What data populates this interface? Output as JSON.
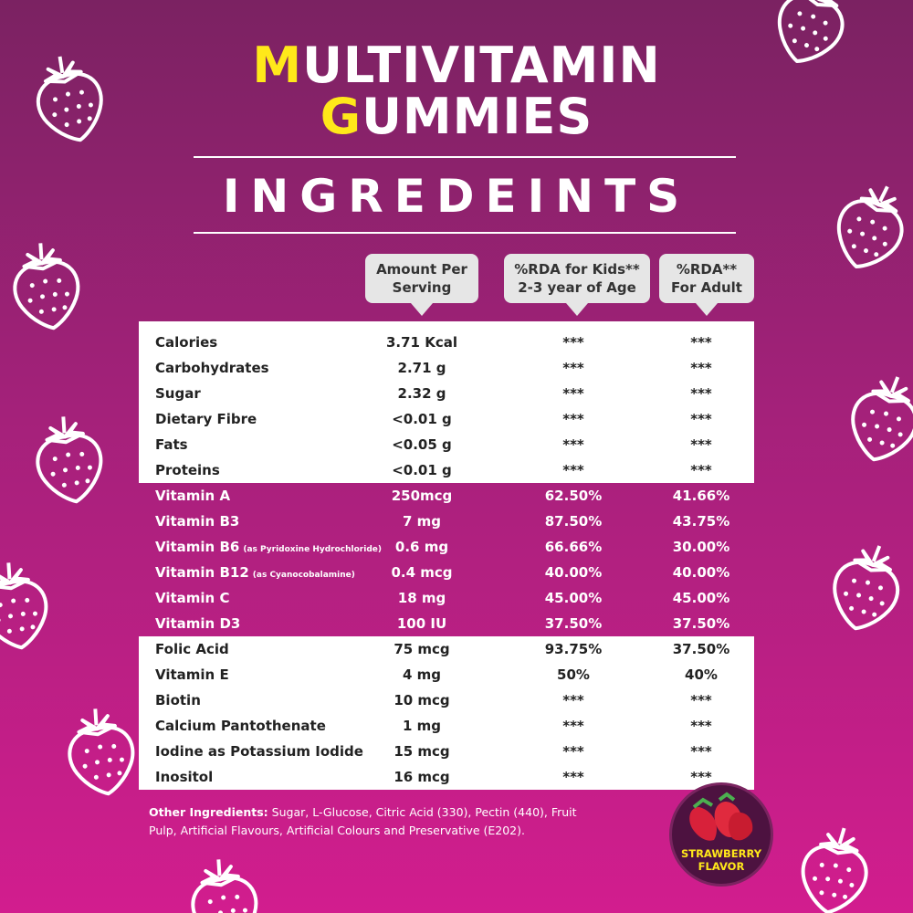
{
  "header": {
    "title_lines": [
      "MULTIVITAMIN",
      "GUMMIES"
    ],
    "subtitle": "INGREDEINTS"
  },
  "columns": [
    [
      "Amount Per",
      "Serving"
    ],
    [
      "%RDA for Kids**",
      "2-3 year of Age"
    ],
    [
      "%RDA**",
      "For Adult"
    ]
  ],
  "table": {
    "groups": [
      {
        "rows": [
          {
            "name": "Calories",
            "amount": "3.71 Kcal",
            "kids": "***",
            "adult": "***"
          },
          {
            "name": "Carbohydrates",
            "amount": "2.71 g",
            "kids": "***",
            "adult": "***"
          },
          {
            "name": "Sugar",
            "amount": "2.32 g",
            "kids": "***",
            "adult": "***"
          },
          {
            "name": "Dietary Fibre",
            "amount": "<0.01 g",
            "kids": "***",
            "adult": "***"
          },
          {
            "name": "Fats",
            "amount": "<0.05 g",
            "kids": "***",
            "adult": "***"
          },
          {
            "name": "Proteins",
            "amount": "<0.01 g",
            "kids": "***",
            "adult": "***"
          }
        ]
      },
      {
        "rows": [
          {
            "name": "Vitamin A",
            "amount": "250mcg",
            "kids": "62.50%",
            "adult": "41.66%"
          },
          {
            "name": "Vitamin B3",
            "amount": "7 mg",
            "kids": "87.50%",
            "adult": "43.75%"
          },
          {
            "name": "Vitamin B6",
            "note": "(as Pyridoxine Hydrochloride)",
            "amount": "0.6 mg",
            "kids": "66.66%",
            "adult": "30.00%"
          },
          {
            "name": "Vitamin B12",
            "note": "(as Cyanocobalamine)",
            "amount": "0.4 mcg",
            "kids": "40.00%",
            "adult": "40.00%"
          },
          {
            "name": "Vitamin C",
            "amount": "18 mg",
            "kids": "45.00%",
            "adult": "45.00%"
          },
          {
            "name": "Vitamin D3",
            "amount": "100 IU",
            "kids": "37.50%",
            "adult": "37.50%"
          }
        ]
      },
      {
        "rows": [
          {
            "name": "Folic Acid",
            "amount": "75 mcg",
            "kids": "93.75%",
            "adult": "37.50%"
          },
          {
            "name": "Vitamin E",
            "amount": "4 mg",
            "kids": "50%",
            "adult": "40%"
          },
          {
            "name": "Biotin",
            "amount": "10 mcg",
            "kids": "***",
            "adult": "***"
          },
          {
            "name": "Calcium Pantothenate",
            "amount": "1 mg",
            "kids": "***",
            "adult": "***"
          },
          {
            "name": "Iodine as Potassium Iodide",
            "amount": "15 mcg",
            "kids": "***",
            "adult": "***"
          },
          {
            "name": "Inositol",
            "amount": "16 mcg",
            "kids": "***",
            "adult": "***"
          }
        ]
      }
    ]
  },
  "footer": {
    "label": "Other Ingredients:",
    "text": "Sugar, L-Glucose, Citric Acid (330), Pectin (440), Fruit Pulp, Artificial Flavours, Artificial Colours and Preservative (E202)."
  },
  "badge": {
    "text": "STRAWBERRY FLAVOR"
  }
}
